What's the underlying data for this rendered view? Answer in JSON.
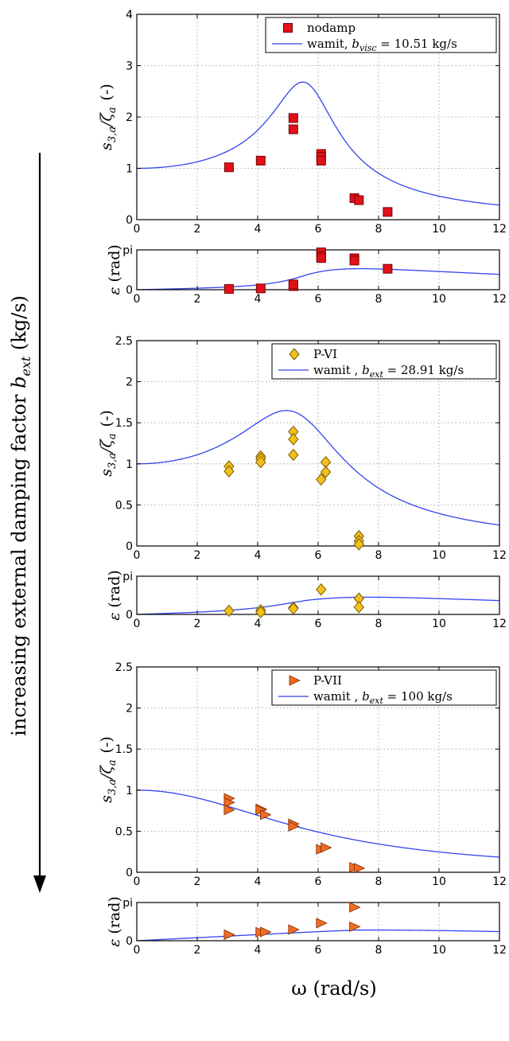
{
  "figure": {
    "side_label": "increasing external damping factor ",
    "side_label_symbol": "b",
    "side_label_sub": "ext",
    "side_label_unit": "  (kg/s)",
    "x_label": "ω  (rad/s)"
  },
  "chart_data": [
    {
      "type": "scatter",
      "id": "p1",
      "ylabel_main": "s",
      "ylabel_sub1": "3,a",
      "ylabel_mid": "/ζ",
      "ylabel_sub2": "a",
      "ylabel_unit": "(-)",
      "xlim": [
        0,
        12
      ],
      "ylim": [
        0,
        4
      ],
      "xticks": [
        0,
        2,
        4,
        6,
        8,
        10,
        12
      ],
      "yticks": [
        0,
        1,
        2,
        3,
        4
      ],
      "ytick_labels": [
        "0",
        "1",
        "2",
        "3",
        "4"
      ],
      "grid": true,
      "legend": {
        "placement": "top-right",
        "marker_label": "nodamp",
        "line_label": "wamit, ",
        "line_sym": "b",
        "line_sub": "visc",
        "line_value": " = 10.51 kg/s"
      },
      "marker": {
        "shape": "square",
        "color": "#e0111a",
        "edge": "#7a0000"
      },
      "line_color": "#3344ee",
      "points": [
        [
          3.05,
          1.02
        ],
        [
          4.1,
          1.15
        ],
        [
          5.18,
          1.98
        ],
        [
          5.18,
          1.76
        ],
        [
          6.1,
          1.28
        ],
        [
          6.1,
          1.22
        ],
        [
          6.1,
          1.15
        ],
        [
          7.2,
          0.42
        ],
        [
          7.35,
          0.38
        ],
        [
          8.3,
          0.15
        ]
      ],
      "curve_params": {
        "wn": 5.7,
        "zeta": 0.19
      }
    },
    {
      "type": "scatter",
      "id": "p1phase",
      "ylabel_main": "ε",
      "ylabel_unit": "(rad)",
      "xlim": [
        0,
        12
      ],
      "ylim": [
        0,
        3.1416
      ],
      "xticks": [
        0,
        2,
        4,
        6,
        8,
        10,
        12
      ],
      "yticks": [
        0,
        3.1416
      ],
      "ytick_labels": [
        "0",
        "pi"
      ],
      "grid": true,
      "marker": {
        "shape": "square",
        "color": "#e0111a",
        "edge": "#7a0000"
      },
      "line_color": "#3344ee",
      "points": [
        [
          3.05,
          0.06
        ],
        [
          4.1,
          0.1
        ],
        [
          5.18,
          0.28
        ],
        [
          5.18,
          0.42
        ],
        [
          6.1,
          2.95
        ],
        [
          6.1,
          2.65
        ],
        [
          6.1,
          2.5
        ],
        [
          7.2,
          2.48
        ],
        [
          7.2,
          2.3
        ],
        [
          8.3,
          1.65
        ]
      ],
      "curve_params": {
        "wn": 5.7,
        "zeta": 0.19,
        "scale": 0.78,
        "decay": 0.04
      }
    },
    {
      "type": "scatter",
      "id": "p2",
      "ylabel_main": "s",
      "ylabel_sub1": "3,a",
      "ylabel_mid": "/ζ",
      "ylabel_sub2": "a",
      "ylabel_unit": "(-)",
      "xlim": [
        0,
        12
      ],
      "ylim": [
        0,
        2.5
      ],
      "xticks": [
        0,
        2,
        4,
        6,
        8,
        10,
        12
      ],
      "yticks": [
        0,
        0.5,
        1,
        1.5,
        2,
        2.5
      ],
      "ytick_labels": [
        "0",
        "0.5",
        "1",
        "1.5",
        "2",
        "2.5"
      ],
      "grid": true,
      "legend": {
        "placement": "top-right",
        "marker_label": "P-VI",
        "line_label": "wamit , ",
        "line_sym": "b",
        "line_sub": "ext",
        "line_value": " = 28.91 kg/s"
      },
      "marker": {
        "shape": "diamond",
        "color": "#f2c01d",
        "edge": "#7a5a00"
      },
      "line_color": "#3344ee",
      "points": [
        [
          3.05,
          0.97
        ],
        [
          3.05,
          0.91
        ],
        [
          4.1,
          1.09
        ],
        [
          4.1,
          1.06
        ],
        [
          4.1,
          1.02
        ],
        [
          5.18,
          1.39
        ],
        [
          5.18,
          1.3
        ],
        [
          5.18,
          1.11
        ],
        [
          6.1,
          0.81
        ],
        [
          6.25,
          1.02
        ],
        [
          6.25,
          0.9
        ],
        [
          7.35,
          0.12
        ],
        [
          7.35,
          0.06
        ],
        [
          7.35,
          0.02
        ]
      ],
      "curve_params": {
        "wn": 5.55,
        "zeta": 0.32
      }
    },
    {
      "type": "scatter",
      "id": "p2phase",
      "ylabel_main": "ε",
      "ylabel_unit": "(rad)",
      "xlim": [
        0,
        12
      ],
      "ylim": [
        0,
        3.1416
      ],
      "xticks": [
        0,
        2,
        4,
        6,
        8,
        10,
        12
      ],
      "yticks": [
        0,
        3.1416
      ],
      "ytick_labels": [
        "0",
        "pi"
      ],
      "grid": true,
      "marker": {
        "shape": "diamond",
        "color": "#f2c01d",
        "edge": "#7a5a00"
      },
      "line_color": "#3344ee",
      "points": [
        [
          3.05,
          0.3
        ],
        [
          4.1,
          0.35
        ],
        [
          4.1,
          0.18
        ],
        [
          5.18,
          0.55
        ],
        [
          5.18,
          0.48
        ],
        [
          6.1,
          2.05
        ],
        [
          7.35,
          1.3
        ],
        [
          7.35,
          0.6
        ]
      ],
      "curve_params": {
        "wn": 5.55,
        "zeta": 0.32,
        "scale": 0.72,
        "decay": 0.035
      }
    },
    {
      "type": "scatter",
      "id": "p3",
      "ylabel_main": "s",
      "ylabel_sub1": "3,a",
      "ylabel_mid": "/ζ",
      "ylabel_sub2": "a",
      "ylabel_unit": "(-)",
      "xlim": [
        0,
        12
      ],
      "ylim": [
        0,
        2.5
      ],
      "xticks": [
        0,
        2,
        4,
        6,
        8,
        10,
        12
      ],
      "yticks": [
        0,
        0.5,
        1,
        1.5,
        2,
        2.5
      ],
      "ytick_labels": [
        "0",
        "0.5",
        "1",
        "1.5",
        "2",
        "2.5"
      ],
      "grid": true,
      "legend": {
        "placement": "top-right",
        "marker_label": "P-VII",
        "line_label": "wamit , ",
        "line_sym": "b",
        "line_sub": "ext",
        "line_value": " = 100 kg/s"
      },
      "marker": {
        "shape": "triangle-right",
        "color": "#f26b21",
        "edge": "#7a2a00"
      },
      "line_color": "#3344ee",
      "points": [
        [
          3.05,
          0.9
        ],
        [
          3.05,
          0.85
        ],
        [
          3.05,
          0.76
        ],
        [
          4.1,
          0.77
        ],
        [
          4.1,
          0.76
        ],
        [
          4.25,
          0.7
        ],
        [
          5.18,
          0.59
        ],
        [
          5.18,
          0.56
        ],
        [
          6.1,
          0.28
        ],
        [
          6.25,
          0.3
        ],
        [
          7.2,
          0.06
        ],
        [
          7.35,
          0.05
        ]
      ],
      "curve_params": {
        "wn": 5.6,
        "zeta": 0.95
      }
    },
    {
      "type": "scatter",
      "id": "p3phase",
      "ylabel_main": "ε",
      "ylabel_unit": "(rad)",
      "xlim": [
        0,
        12
      ],
      "ylim": [
        0,
        3.1416
      ],
      "xticks": [
        0,
        2,
        4,
        6,
        8,
        10,
        12
      ],
      "yticks": [
        0,
        3.1416
      ],
      "ytick_labels": [
        "0",
        "pi"
      ],
      "grid": true,
      "marker": {
        "shape": "triangle-right",
        "color": "#f26b21",
        "edge": "#7a2a00"
      },
      "line_color": "#3344ee",
      "points": [
        [
          3.05,
          0.5
        ],
        [
          4.1,
          0.7
        ],
        [
          4.25,
          0.72
        ],
        [
          5.18,
          0.92
        ],
        [
          6.1,
          1.45
        ],
        [
          7.2,
          2.75
        ],
        [
          7.2,
          1.15
        ]
      ],
      "curve_params": {
        "wn": 7.3,
        "zeta": 0.8,
        "scale": 0.56,
        "decay": 0.04
      }
    }
  ]
}
